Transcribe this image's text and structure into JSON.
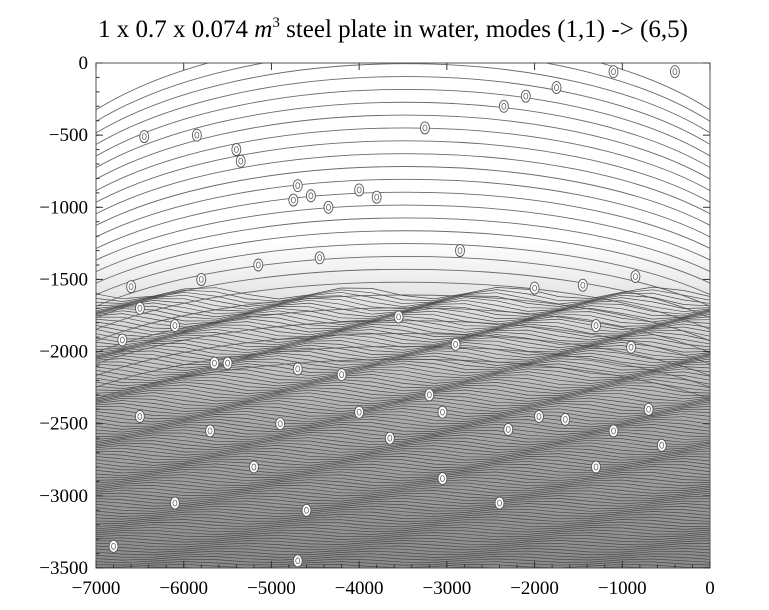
{
  "chart_data": {
    "type": "contour",
    "title_parts": {
      "prefix": "1 x 0.7 x 0.074 ",
      "unit": "m",
      "exponent": "3",
      "suffix": " steel plate in water, modes (1,1) -> (6,5)"
    },
    "xlabel": "",
    "ylabel": "",
    "xlim": [
      -7000,
      0
    ],
    "ylim": [
      -3500,
      0
    ],
    "x_ticks": [
      -7000,
      -6000,
      -5000,
      -4000,
      -3000,
      -2000,
      -1000,
      0
    ],
    "y_ticks": [
      0,
      -500,
      -1000,
      -1500,
      -2000,
      -2500,
      -3000,
      -3500
    ],
    "x_tick_labels": [
      "−7000",
      "−6000",
      "−5000",
      "−4000",
      "−3000",
      "−2000",
      "−1000",
      "0"
    ],
    "y_tick_labels": [
      "0",
      "−500",
      "−1000",
      "−1500",
      "−2000",
      "−2500",
      "−3000",
      "−3500"
    ],
    "grid": false,
    "colors": {
      "line": "#6a6a6a",
      "shade_light": "#e8e8e8",
      "shade_dark": "#8c8c8c"
    },
    "critical_points": [
      {
        "x": -6450,
        "y": -510
      },
      {
        "x": -5850,
        "y": -500
      },
      {
        "x": -5400,
        "y": -600
      },
      {
        "x": -5350,
        "y": -680
      },
      {
        "x": -4700,
        "y": -850
      },
      {
        "x": -4550,
        "y": -920
      },
      {
        "x": -4350,
        "y": -1000
      },
      {
        "x": -4000,
        "y": -880
      },
      {
        "x": -3800,
        "y": -930
      },
      {
        "x": -3250,
        "y": -450
      },
      {
        "x": -2350,
        "y": -300
      },
      {
        "x": -2100,
        "y": -230
      },
      {
        "x": -1750,
        "y": -170
      },
      {
        "x": -1100,
        "y": -60
      },
      {
        "x": -400,
        "y": -60
      },
      {
        "x": -4750,
        "y": -950
      },
      {
        "x": -2850,
        "y": -1300
      },
      {
        "x": -4450,
        "y": -1350
      },
      {
        "x": -5150,
        "y": -1400
      },
      {
        "x": -5800,
        "y": -1500
      },
      {
        "x": -6600,
        "y": -1550
      },
      {
        "x": -2000,
        "y": -1560
      },
      {
        "x": -1450,
        "y": -1540
      },
      {
        "x": -850,
        "y": -1480
      },
      {
        "x": -3550,
        "y": -1760
      },
      {
        "x": -1300,
        "y": -1820
      },
      {
        "x": -6500,
        "y": -1700
      },
      {
        "x": -6100,
        "y": -1820
      },
      {
        "x": -5650,
        "y": -2080
      },
      {
        "x": -5500,
        "y": -2080
      },
      {
        "x": -4700,
        "y": -2120
      },
      {
        "x": -4200,
        "y": -2160
      },
      {
        "x": -2900,
        "y": -1950
      },
      {
        "x": -900,
        "y": -1970
      },
      {
        "x": -6700,
        "y": -1920
      },
      {
        "x": -3200,
        "y": -2300
      },
      {
        "x": -3050,
        "y": -2420
      },
      {
        "x": -1950,
        "y": -2450
      },
      {
        "x": -700,
        "y": -2400
      },
      {
        "x": -5700,
        "y": -2550
      },
      {
        "x": -4900,
        "y": -2500
      },
      {
        "x": -4000,
        "y": -2420
      },
      {
        "x": -2300,
        "y": -2540
      },
      {
        "x": -1650,
        "y": -2470
      },
      {
        "x": -1100,
        "y": -2550
      },
      {
        "x": -6500,
        "y": -2450
      },
      {
        "x": -3650,
        "y": -2600
      },
      {
        "x": -3050,
        "y": -2880
      },
      {
        "x": -5200,
        "y": -2800
      },
      {
        "x": -1300,
        "y": -2800
      },
      {
        "x": -550,
        "y": -2650
      },
      {
        "x": -6100,
        "y": -3050
      },
      {
        "x": -4600,
        "y": -3100
      },
      {
        "x": -2400,
        "y": -3050
      },
      {
        "x": -4700,
        "y": -3450
      },
      {
        "x": -6800,
        "y": -3350
      }
    ]
  }
}
